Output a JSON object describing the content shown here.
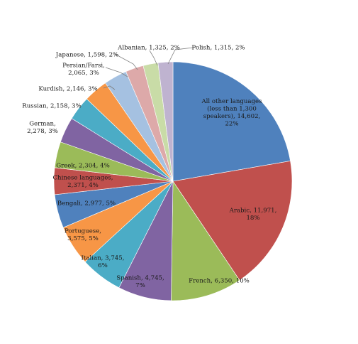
{
  "chart_data": {
    "type": "pie",
    "start_angle_deg": 0,
    "direction": "clockwise",
    "slices": [
      {
        "label": "All other languages (less than 1,300 speakers)",
        "value": 14602,
        "percent": "22%",
        "color": "#4F81BD",
        "text": [
          "All other languages",
          "(less than 1,300",
          "speakers), 14,602,",
          "22%"
        ]
      },
      {
        "label": "Arabic",
        "value": 11971,
        "percent": "18%",
        "color": "#C0504D",
        "text": [
          "Arabic, 11,971,",
          "18%"
        ]
      },
      {
        "label": "French",
        "value": 6350,
        "percent": "10%",
        "color": "#9BBB59",
        "text": [
          "French, 6,350, 10%"
        ]
      },
      {
        "label": "Spanish",
        "value": 4745,
        "percent": "7%",
        "color": "#8064A2",
        "text": [
          "Spanish, 4,745,",
          "7%"
        ]
      },
      {
        "label": "Italian",
        "value": 3745,
        "percent": "6%",
        "color": "#4BACC6",
        "text": [
          "Italian, 3,745,",
          "6%"
        ]
      },
      {
        "label": "Portuguese",
        "value": 3575,
        "percent": "5%",
        "color": "#F79646",
        "text": [
          "Portuguese,",
          "3,575, 5%"
        ]
      },
      {
        "label": "Bengali",
        "value": 2977,
        "percent": "5%",
        "color": "#4F81BD",
        "text": [
          "Bengali, 2,977, 5%"
        ]
      },
      {
        "label": "Chinese languages",
        "value": 2371,
        "percent": "4%",
        "color": "#C0504D",
        "text": [
          "Chinese languages,",
          "2,371, 4%"
        ]
      },
      {
        "label": "Greek",
        "value": 2304,
        "percent": "4%",
        "color": "#9BBB59",
        "text": [
          "Greek, 2,304, 4%"
        ]
      },
      {
        "label": "German",
        "value": 2278,
        "percent": "3%",
        "color": "#8064A2",
        "text": [
          "German,",
          "2,278, 3%"
        ]
      },
      {
        "label": "Russian",
        "value": 2158,
        "percent": "3%",
        "color": "#4BACC6",
        "text": [
          "Russian, 2,158, 3%"
        ]
      },
      {
        "label": "Kurdish",
        "value": 2146,
        "percent": "3%",
        "color": "#F79646",
        "text": [
          "Kurdish, 2,146, 3%"
        ]
      },
      {
        "label": "Persian/Farsi",
        "value": 2065,
        "percent": "3%",
        "color": "#A5C1E1",
        "text": [
          "Persian/Farsi,",
          "2,065, 3%"
        ]
      },
      {
        "label": "Japanese",
        "value": 1598,
        "percent": "2%",
        "color": "#DDA9A9",
        "text": [
          "Japanese, 1,598, 2%"
        ]
      },
      {
        "label": "Albanian",
        "value": 1325,
        "percent": "2%",
        "color": "#C9DCA7",
        "text": [
          "Albanian, 1,325, 2%"
        ]
      },
      {
        "label": "Polish",
        "value": 1315,
        "percent": "2%",
        "color": "#BFB3D0",
        "text": [
          "Polish, 1,315, 2%"
        ]
      }
    ],
    "title": "",
    "legend": "none"
  }
}
